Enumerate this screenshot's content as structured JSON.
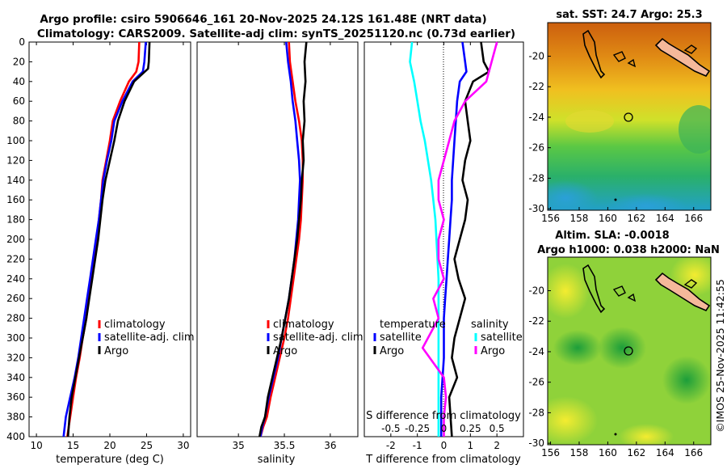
{
  "header": {
    "line1": "Argo profile: csiro 5906646_161 20-Nov-2025 24.12S 161.48E (NRT data)",
    "line2": "Climatology: CARS2009. Satellite-adj clim: synTS_20251120.nc (0.73d earlier)"
  },
  "side_label": "©IMOS 25-Nov-2025 11:42:55",
  "colors": {
    "red": "#ff0000",
    "blue": "#0000ff",
    "black": "#000000",
    "cyan": "#00ffff",
    "magenta": "#ff00ff"
  },
  "chart_data": [
    {
      "type": "line",
      "id": "temperature",
      "xlabel": "temperature (deg C)",
      "xlim": [
        9,
        31
      ],
      "ylim": [
        0,
        400
      ],
      "xticks": [
        "10",
        "15",
        "20",
        "25",
        "30"
      ],
      "yticks": [
        "0",
        "20",
        "40",
        "60",
        "80",
        "100",
        "120",
        "140",
        "160",
        "180",
        "200",
        "220",
        "240",
        "260",
        "280",
        "300",
        "320",
        "340",
        "360",
        "380",
        "400"
      ],
      "legend": [
        "climatology",
        "satellite-adj. clim",
        "Argo"
      ],
      "series": [
        {
          "name": "climatology",
          "color": "red",
          "x": [
            24,
            23.9,
            23.6,
            22.6,
            21.4,
            20.4,
            20,
            19.5,
            19,
            18.8,
            18.5,
            18.2,
            17.8,
            17.5,
            17.1,
            16.8,
            16.3,
            15.9,
            15.4,
            15,
            14.6,
            14.2
          ],
          "y": [
            0,
            20,
            30,
            40,
            60,
            80,
            100,
            120,
            140,
            160,
            180,
            200,
            220,
            240,
            260,
            280,
            300,
            320,
            340,
            360,
            380,
            400
          ]
        },
        {
          "name": "satellite-adj. clim",
          "color": "blue",
          "x": [
            24.9,
            24.7,
            24.5,
            23.1,
            21.7,
            20.6,
            20.2,
            19.6,
            19.1,
            18.8,
            18.5,
            18.1,
            17.7,
            17.3,
            16.9,
            16.5,
            16.1,
            15.7,
            15.2,
            14.6,
            14,
            13.7
          ],
          "y": [
            0,
            20,
            30,
            40,
            60,
            80,
            100,
            120,
            140,
            160,
            180,
            200,
            220,
            240,
            260,
            280,
            300,
            320,
            340,
            360,
            380,
            400
          ]
        },
        {
          "name": "Argo",
          "color": "black",
          "x": [
            25.4,
            25.3,
            25.2,
            23.3,
            22,
            21.1,
            20.6,
            20,
            19.4,
            19,
            18.7,
            18.4,
            18,
            17.6,
            17.2,
            16.8,
            16.3,
            15.8,
            15.3,
            14.8,
            14.5,
            14.3
          ],
          "y": [
            0,
            20,
            27,
            40,
            60,
            80,
            100,
            120,
            140,
            160,
            180,
            200,
            220,
            240,
            260,
            280,
            300,
            320,
            340,
            360,
            380,
            400
          ]
        }
      ]
    },
    {
      "type": "line",
      "id": "salinity",
      "xlabel": "salinity",
      "xlim": [
        34.55,
        36.3
      ],
      "ylim": [
        0,
        400
      ],
      "xticks": [
        "35",
        "35.5",
        "36"
      ],
      "legend": [
        "climatology",
        "satellite-adj. clim",
        "Argo"
      ],
      "series": [
        {
          "name": "climatology",
          "color": "red",
          "x": [
            35.55,
            35.56,
            35.59,
            35.62,
            35.66,
            35.69,
            35.7,
            35.7,
            35.69,
            35.68,
            35.66,
            35.63,
            35.6,
            35.57,
            35.54,
            35.5,
            35.45,
            35.4,
            35.35,
            35.31,
            35.27,
            35.24
          ],
          "y": [
            0,
            20,
            40,
            60,
            80,
            100,
            120,
            140,
            160,
            180,
            200,
            220,
            240,
            260,
            280,
            300,
            320,
            340,
            360,
            380,
            390,
            400
          ]
        },
        {
          "name": "satellite-adj. clim",
          "color": "blue",
          "x": [
            35.52,
            35.54,
            35.57,
            35.59,
            35.62,
            35.64,
            35.66,
            35.67,
            35.66,
            35.65,
            35.63,
            35.61,
            35.58,
            35.55,
            35.51,
            35.47,
            35.43,
            35.38,
            35.33,
            35.29,
            35.26,
            35.24
          ],
          "y": [
            0,
            20,
            40,
            60,
            80,
            100,
            120,
            140,
            160,
            180,
            200,
            220,
            240,
            260,
            280,
            300,
            320,
            340,
            360,
            380,
            390,
            400
          ]
        },
        {
          "name": "Argo",
          "color": "black",
          "x": [
            35.74,
            35.72,
            35.73,
            35.71,
            35.72,
            35.7,
            35.71,
            35.69,
            35.68,
            35.66,
            35.64,
            35.61,
            35.58,
            35.55,
            35.51,
            35.47,
            35.42,
            35.37,
            35.32,
            35.29,
            35.25,
            35.23
          ],
          "y": [
            0,
            20,
            40,
            60,
            80,
            100,
            120,
            140,
            160,
            180,
            200,
            220,
            240,
            260,
            280,
            300,
            320,
            340,
            360,
            380,
            390,
            400
          ]
        }
      ]
    },
    {
      "type": "line",
      "id": "difference",
      "xlabel": "T difference from climatology",
      "xlim": [
        -3,
        3
      ],
      "ylim": [
        0,
        400
      ],
      "xticks": [
        "-2",
        "-1",
        "0",
        "1",
        "2"
      ],
      "s_axis_label": "S difference from climatology",
      "s_ticks": [
        "-0.5",
        "-0.25",
        "0",
        "0.25",
        "0.5"
      ],
      "legend_headers": [
        "temperature",
        "salinity"
      ],
      "legend": [
        "satellite",
        "Argo",
        "satellite",
        "Argo"
      ],
      "series": [
        {
          "name": "T satellite",
          "color": "blue",
          "x": [
            0.7,
            0.8,
            0.85,
            0.6,
            0.5,
            0.45,
            0.4,
            0.35,
            0.3,
            0.3,
            0.25,
            0.2,
            0.15,
            0.1,
            0.05,
            0,
            0,
            0,
            -0.05,
            -0.1,
            -0.1
          ],
          "y": [
            0,
            20,
            30,
            40,
            60,
            80,
            100,
            120,
            140,
            160,
            180,
            200,
            220,
            240,
            260,
            280,
            300,
            320,
            340,
            360,
            400
          ]
        },
        {
          "name": "T Argo",
          "color": "black",
          "x": [
            1.4,
            1.5,
            1.7,
            1.1,
            0.8,
            0.9,
            1,
            0.8,
            0.7,
            0.9,
            0.8,
            0.6,
            0.4,
            0.55,
            0.8,
            0.6,
            0.4,
            0.3,
            0.5,
            0.2,
            0.3
          ],
          "y": [
            0,
            20,
            30,
            40,
            60,
            80,
            100,
            120,
            140,
            160,
            180,
            200,
            220,
            240,
            260,
            280,
            300,
            320,
            340,
            360,
            400
          ]
        },
        {
          "name": "S satellite",
          "color": "cyan",
          "x": [
            -0.3,
            -0.32,
            -0.28,
            -0.25,
            -0.22,
            -0.18,
            -0.15,
            -0.12,
            -0.1,
            -0.08,
            -0.07,
            -0.06,
            -0.05,
            -0.05,
            -0.05,
            -0.05,
            -0.05,
            -0.05,
            -0.05,
            -0.05,
            -0.05
          ],
          "y": [
            0,
            20,
            40,
            60,
            80,
            100,
            120,
            140,
            160,
            180,
            200,
            220,
            240,
            260,
            280,
            300,
            320,
            340,
            360,
            380,
            400
          ]
        },
        {
          "name": "S Argo",
          "color": "magenta",
          "x": [
            0.5,
            0.45,
            0.4,
            0.2,
            0.1,
            0.05,
            0,
            -0.05,
            -0.05,
            0,
            -0.05,
            -0.05,
            0,
            -0.1,
            -0.05,
            -0.15,
            -0.2,
            0,
            0.02,
            0,
            0
          ],
          "y": [
            0,
            20,
            40,
            60,
            80,
            100,
            120,
            140,
            160,
            180,
            200,
            220,
            240,
            260,
            280,
            300,
            310,
            340,
            360,
            380,
            400
          ]
        }
      ]
    },
    {
      "type": "heatmap",
      "id": "sst_map",
      "title": "sat. SST: 24.7 Argo: 25.3",
      "xticks": [
        "156",
        "158",
        "160",
        "162",
        "164",
        "166"
      ],
      "yticks": [
        "-20",
        "-22",
        "-24",
        "-26",
        "-28",
        "-30"
      ],
      "xlim": [
        155.8,
        167.2
      ],
      "ylim": [
        -30.1,
        -17.8
      ],
      "argo_position": {
        "lon": 161.48,
        "lat": -24.12
      }
    },
    {
      "type": "heatmap",
      "id": "sla_map",
      "title_line1": "Altim. SLA: -0.0018",
      "title_line2": "Argo h1000: 0.038 h2000: NaN",
      "xticks": [
        "156",
        "158",
        "160",
        "162",
        "164",
        "166"
      ],
      "yticks": [
        "-20",
        "-22",
        "-24",
        "-26",
        "-28",
        "-30"
      ],
      "xlim": [
        155.8,
        167.2
      ],
      "ylim": [
        -30.1,
        -17.8
      ],
      "argo_position": {
        "lon": 161.48,
        "lat": -24.12
      }
    }
  ]
}
